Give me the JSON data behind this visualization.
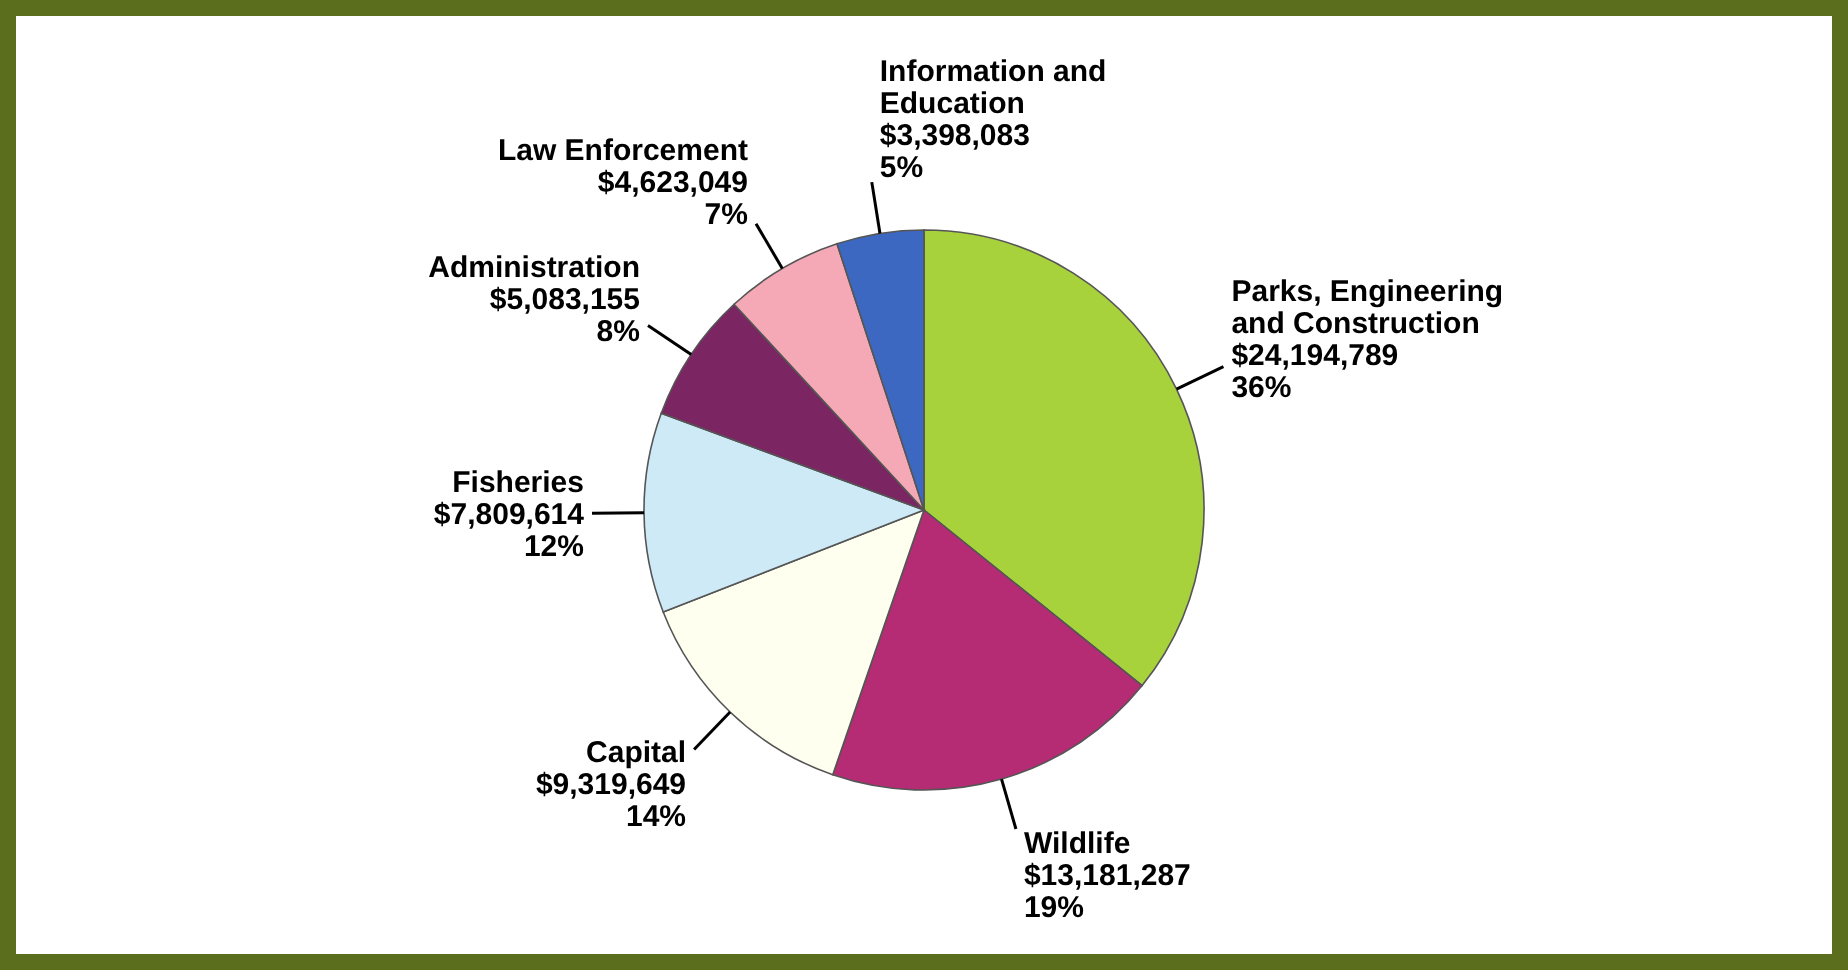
{
  "chart_data": {
    "type": "pie",
    "categories": [
      "Parks, Engineering\nand Construction",
      "Wildlife",
      "Capital",
      "Fisheries",
      "Administration",
      "Law Enforcement",
      "Information and\nEducation"
    ],
    "values": [
      24194789,
      13181287,
      9319649,
      7809614,
      5083155,
      4623049,
      3398083
    ],
    "colors": [
      "#a8d23c",
      "#b52c74",
      "#fffff0",
      "#cfeaf7",
      "#7b2563",
      "#f5a9b6",
      "#3c68c2"
    ],
    "value_labels": [
      "$24,194,789\n36%",
      "$13,181,287\n19%",
      "$9,319,649\n14%",
      "$7,809,614\n12%",
      "$5,083,155\n8%",
      "$4,623,049\n7%",
      "$3,398,083\n5%"
    ]
  }
}
